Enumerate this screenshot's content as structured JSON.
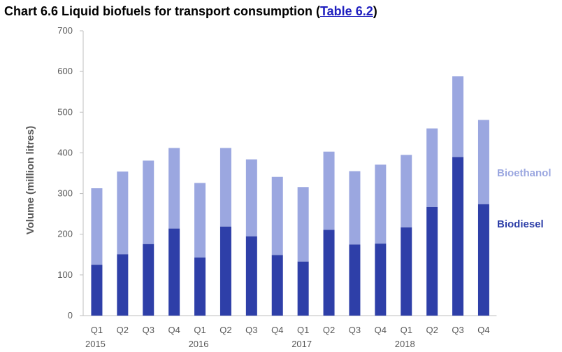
{
  "header": {
    "title_prefix": "Chart 6.6 Liquid biofuels for transport consumption (",
    "link_label": "Table 6.2",
    "title_suffix": ")"
  },
  "chart_data": {
    "type": "bar",
    "stacked": true,
    "title": "Chart 6.6 Liquid biofuels for transport consumption (Table 6.2)",
    "ylabel": "Volume (million litres)",
    "xlabel": "",
    "ylim": [
      0,
      700
    ],
    "yticks": [
      0,
      100,
      200,
      300,
      400,
      500,
      600,
      700
    ],
    "grid": false,
    "legend_position": "right",
    "categories": [
      "Q1",
      "Q2",
      "Q3",
      "Q4",
      "Q1",
      "Q2",
      "Q3",
      "Q4",
      "Q1",
      "Q2",
      "Q3",
      "Q4",
      "Q1",
      "Q2",
      "Q3",
      "Q4"
    ],
    "years": [
      {
        "label": "2015",
        "start": 0,
        "end": 0
      },
      {
        "label": "2016",
        "start": 4,
        "end": 4
      },
      {
        "label": "2017",
        "start": 8,
        "end": 8
      },
      {
        "label": "2018",
        "start": 12,
        "end": 12
      }
    ],
    "series": [
      {
        "name": "Biodiesel",
        "color": "#2e3fa8",
        "values": [
          125,
          151,
          176,
          214,
          143,
          219,
          195,
          149,
          133,
          211,
          175,
          177,
          217,
          267,
          390,
          274
        ]
      },
      {
        "name": "Bioethanol",
        "color": "#9ba7e0",
        "values": [
          188,
          203,
          205,
          198,
          183,
          193,
          189,
          192,
          183,
          192,
          180,
          194,
          178,
          193,
          198,
          207
        ]
      }
    ]
  }
}
